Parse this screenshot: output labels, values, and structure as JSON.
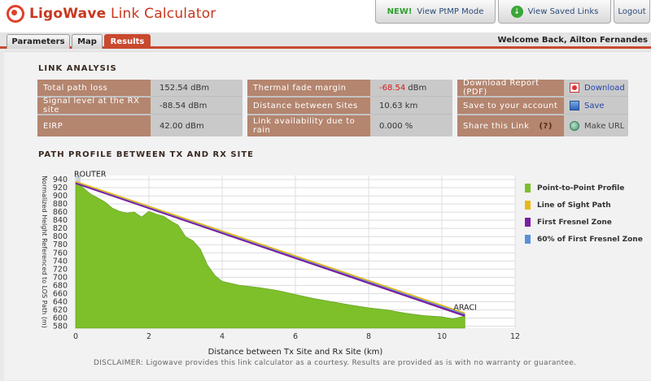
{
  "header": {
    "logo_brand": "LigoWave",
    "logo_suffix": "Link Calculator",
    "ptmp_new": "NEW!",
    "ptmp_label": "View PtMP Mode",
    "saved_label": "View Saved Links",
    "logout_label": "Logout",
    "welcome": "Welcome Back, Ailton Fernandes"
  },
  "tabs": [
    {
      "label": "Parameters"
    },
    {
      "label": "Map"
    },
    {
      "label": "Results",
      "active": true
    }
  ],
  "link_analysis": {
    "title": "LINK ANALYSIS",
    "box1": [
      {
        "label": "Total path loss",
        "value": "152.54 dBm"
      },
      {
        "label": "Signal level at the RX site",
        "value": "-88.54 dBm"
      },
      {
        "label": "EIRP",
        "value": "42.00 dBm"
      }
    ],
    "box2": [
      {
        "label": "Thermal fade margin",
        "value": "-68.54",
        "unit": "dBm"
      },
      {
        "label": "Distance between Sites",
        "value": "10.63 km"
      },
      {
        "label": "Link availability due to rain",
        "value": "0.000 %"
      }
    ],
    "box3": [
      {
        "label": "Download Report (PDF)",
        "action": "Download",
        "icon": "pdf-icon"
      },
      {
        "label": "Save to your account",
        "action": "Save",
        "icon": "save-icon"
      },
      {
        "label": "Share this Link",
        "help": "(?)",
        "action": "Make URL",
        "icon": "globe-icon"
      }
    ]
  },
  "path_profile": {
    "title": "PATH PROFILE BETWEEN TX AND RX SITE",
    "disclaimer": "DISCLAIMER: Ligowave provides this link calculator as a courtesy.  Results are provided as is with no warranty or guarantee."
  },
  "colors": {
    "accent": "#c9492e",
    "label_bg": "#b4856f",
    "terrain": "#7dc02a",
    "los": "#e8b818",
    "fresnel": "#7b1fa0",
    "fresnel60": "#5b8fd6"
  },
  "chart_data": {
    "type": "area",
    "xlabel": "Distance between Tx Site and Rx Site (km)",
    "ylabel": "Normalized Height Referenced to LOS Path (m)",
    "xlim": [
      0,
      12
    ],
    "ylim": [
      575,
      950
    ],
    "xticks": [
      0,
      2,
      4,
      6,
      8,
      10,
      12
    ],
    "yticks": [
      580,
      600,
      620,
      640,
      660,
      680,
      700,
      720,
      740,
      760,
      780,
      800,
      820,
      840,
      860,
      880,
      900,
      920,
      940
    ],
    "annotations": [
      {
        "text": "ROUTER",
        "x": 0,
        "y": 935
      },
      {
        "text": "ARACI",
        "x": 10.63,
        "y": 608
      }
    ],
    "legend": [
      "Point-to-Point Profile",
      "Line of Sight Path",
      "First Fresnel Zone",
      "60% of First Fresnel Zone"
    ],
    "legend_position": "right",
    "grid": true,
    "series": [
      {
        "name": "Point-to-Point Profile",
        "x": [
          0,
          0.2,
          0.4,
          0.6,
          0.8,
          1.0,
          1.2,
          1.4,
          1.6,
          1.8,
          2.0,
          2.2,
          2.4,
          2.6,
          2.8,
          3.0,
          3.2,
          3.4,
          3.6,
          3.8,
          4.0,
          4.5,
          5.0,
          5.5,
          6.0,
          6.5,
          7.0,
          7.5,
          8.0,
          8.5,
          9.0,
          9.5,
          10.0,
          10.3,
          10.63
        ],
        "values": [
          935,
          920,
          905,
          895,
          885,
          870,
          862,
          858,
          860,
          848,
          862,
          855,
          850,
          838,
          828,
          800,
          790,
          770,
          730,
          705,
          690,
          680,
          675,
          668,
          658,
          648,
          640,
          632,
          625,
          620,
          612,
          606,
          603,
          598,
          605
        ]
      },
      {
        "name": "Line of Sight Path",
        "x": [
          0,
          10.63
        ],
        "values": [
          935,
          612
        ]
      },
      {
        "name": "First Fresnel Zone",
        "x": [
          0,
          10.63
        ],
        "values": [
          932,
          606
        ]
      },
      {
        "name": "60% of First Fresnel Zone",
        "x": [
          0,
          10.63
        ],
        "values": [
          934,
          609
        ]
      }
    ]
  }
}
